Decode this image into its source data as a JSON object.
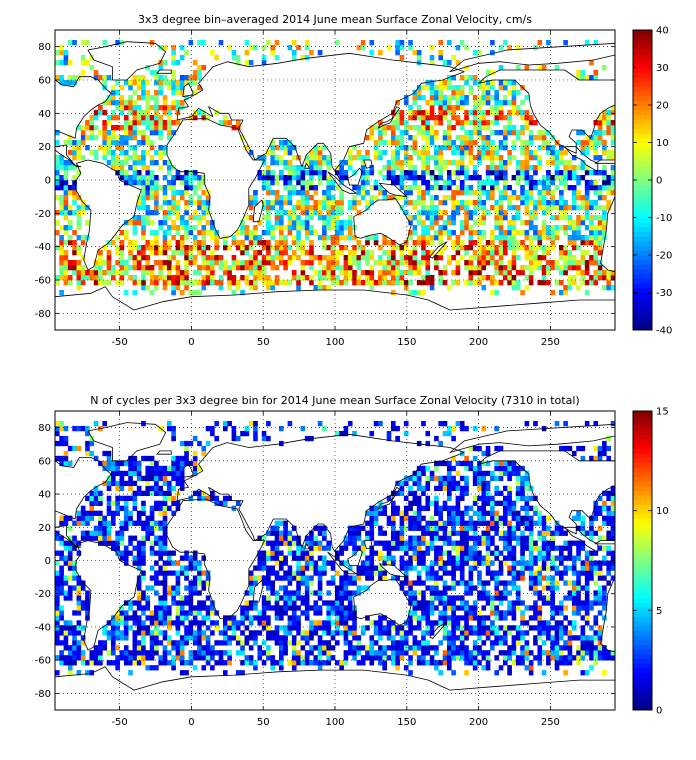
{
  "panels": [
    {
      "title": "3x3 degree bin–averaged 2014 June mean Surface Zonal Velocity, cm/s",
      "xlim": [
        -95,
        295
      ],
      "ylim": [
        -90,
        90
      ],
      "xticks": [
        -50,
        0,
        50,
        100,
        150,
        200,
        250
      ],
      "yticks": [
        -80,
        -60,
        -40,
        -20,
        0,
        20,
        40,
        60,
        80
      ],
      "grid": "dotted",
      "colorbar": {
        "min": -40,
        "max": 40,
        "ticks": [
          -40,
          -30,
          -20,
          -10,
          0,
          10,
          20,
          30,
          40
        ],
        "colormap": "jet"
      },
      "field": "zonal_velocity"
    },
    {
      "title": "N of cycles per 3x3 degree bin for 2014 June mean Surface Zonal Velocity (7310 in total)",
      "xlim": [
        -95,
        295
      ],
      "ylim": [
        -90,
        90
      ],
      "xticks": [
        -50,
        0,
        50,
        100,
        150,
        200,
        250
      ],
      "yticks": [
        -80,
        -60,
        -40,
        -20,
        0,
        20,
        40,
        60,
        80
      ],
      "grid": "dotted",
      "colorbar": {
        "min": 0,
        "max": 15,
        "ticks": [
          0,
          5,
          10,
          15
        ],
        "colormap": "jet"
      },
      "field": "cycle_count"
    }
  ]
}
